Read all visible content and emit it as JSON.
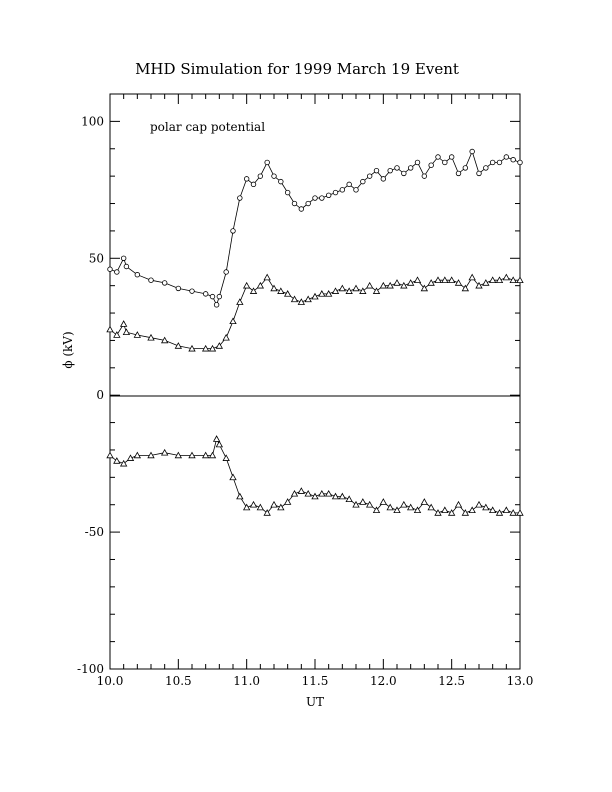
{
  "chart_data": {
    "type": "scatter",
    "title": "MHD Simulation for 1999 March 19 Event",
    "xlabel": "UT",
    "ylabel": "ϕ  (kV)",
    "annotation": "polar cap potential",
    "xlim": [
      10.0,
      13.0
    ],
    "ylim": [
      -100,
      110
    ],
    "xticks": [
      10.0,
      10.5,
      11.0,
      11.5,
      12.0,
      12.5,
      13.0
    ],
    "xtick_labels": [
      "10.0",
      "10.5",
      "11.0",
      "11.5",
      "12.0",
      "12.5",
      "13.0"
    ],
    "yticks": [
      100,
      50,
      0,
      -50,
      -100
    ],
    "ytick_labels": [
      "100",
      "50",
      "0",
      "-50",
      "-100"
    ],
    "zero_line": true,
    "grid": false,
    "series": [
      {
        "marker": "circle",
        "x": [
          10.0,
          10.05,
          10.1,
          10.12,
          10.2,
          10.3,
          10.4,
          10.5,
          10.6,
          10.7,
          10.75,
          10.78,
          10.8,
          10.85,
          10.9,
          10.95,
          11.0,
          11.05,
          11.1,
          11.15,
          11.2,
          11.25,
          11.3,
          11.35,
          11.4,
          11.45,
          11.5,
          11.55,
          11.6,
          11.65,
          11.7,
          11.75,
          11.8,
          11.85,
          11.9,
          11.95,
          12.0,
          12.05,
          12.1,
          12.15,
          12.2,
          12.25,
          12.3,
          12.35,
          12.4,
          12.45,
          12.5,
          12.55,
          12.6,
          12.65,
          12.7,
          12.75,
          12.8,
          12.85,
          12.9,
          12.95,
          13.0
        ],
        "y": [
          46,
          45,
          50,
          47,
          44,
          42,
          41,
          39,
          38,
          37,
          36,
          33,
          36,
          45,
          60,
          72,
          79,
          77,
          80,
          85,
          80,
          78,
          74,
          70,
          68,
          70,
          72,
          72,
          73,
          74,
          75,
          77,
          75,
          78,
          80,
          82,
          79,
          82,
          83,
          81,
          83,
          85,
          80,
          84,
          87,
          85,
          87,
          81,
          83,
          89,
          81,
          83,
          85,
          85,
          87,
          86,
          85
        ]
      },
      {
        "marker": "triangle",
        "x": [
          10.0,
          10.05,
          10.1,
          10.12,
          10.2,
          10.3,
          10.4,
          10.5,
          10.6,
          10.7,
          10.75,
          10.8,
          10.85,
          10.9,
          10.95,
          11.0,
          11.05,
          11.1,
          11.15,
          11.2,
          11.25,
          11.3,
          11.35,
          11.4,
          11.45,
          11.5,
          11.55,
          11.6,
          11.65,
          11.7,
          11.75,
          11.8,
          11.85,
          11.9,
          11.95,
          12.0,
          12.05,
          12.1,
          12.15,
          12.2,
          12.25,
          12.3,
          12.35,
          12.4,
          12.45,
          12.5,
          12.55,
          12.6,
          12.65,
          12.7,
          12.75,
          12.8,
          12.85,
          12.9,
          12.95,
          13.0
        ],
        "y": [
          24,
          22,
          26,
          23,
          22,
          21,
          20,
          18,
          17,
          17,
          17,
          18,
          21,
          27,
          34,
          40,
          38,
          40,
          43,
          39,
          38,
          37,
          35,
          34,
          35,
          36,
          37,
          37,
          38,
          39,
          38,
          39,
          38,
          40,
          38,
          40,
          40,
          41,
          40,
          41,
          42,
          39,
          41,
          42,
          42,
          42,
          41,
          39,
          43,
          40,
          41,
          42,
          42,
          43,
          42,
          42
        ]
      },
      {
        "marker": "triangle",
        "x": [
          10.0,
          10.05,
          10.1,
          10.15,
          10.2,
          10.3,
          10.4,
          10.5,
          10.6,
          10.7,
          10.75,
          10.78,
          10.8,
          10.85,
          10.9,
          10.95,
          11.0,
          11.05,
          11.1,
          11.15,
          11.2,
          11.25,
          11.3,
          11.35,
          11.4,
          11.45,
          11.5,
          11.55,
          11.6,
          11.65,
          11.7,
          11.75,
          11.8,
          11.85,
          11.9,
          11.95,
          12.0,
          12.05,
          12.1,
          12.15,
          12.2,
          12.25,
          12.3,
          12.35,
          12.4,
          12.45,
          12.5,
          12.55,
          12.6,
          12.65,
          12.7,
          12.75,
          12.8,
          12.85,
          12.9,
          12.95,
          13.0
        ],
        "y": [
          -22,
          -24,
          -25,
          -23,
          -22,
          -22,
          -21,
          -22,
          -22,
          -22,
          -22,
          -16,
          -18,
          -23,
          -30,
          -37,
          -41,
          -40,
          -41,
          -43,
          -40,
          -41,
          -39,
          -36,
          -35,
          -36,
          -37,
          -36,
          -36,
          -37,
          -37,
          -38,
          -40,
          -39,
          -40,
          -42,
          -39,
          -41,
          -42,
          -40,
          -41,
          -42,
          -39,
          -41,
          -43,
          -42,
          -43,
          -40,
          -43,
          -42,
          -40,
          -41,
          -42,
          -43,
          -42,
          -43,
          -43
        ]
      }
    ]
  }
}
